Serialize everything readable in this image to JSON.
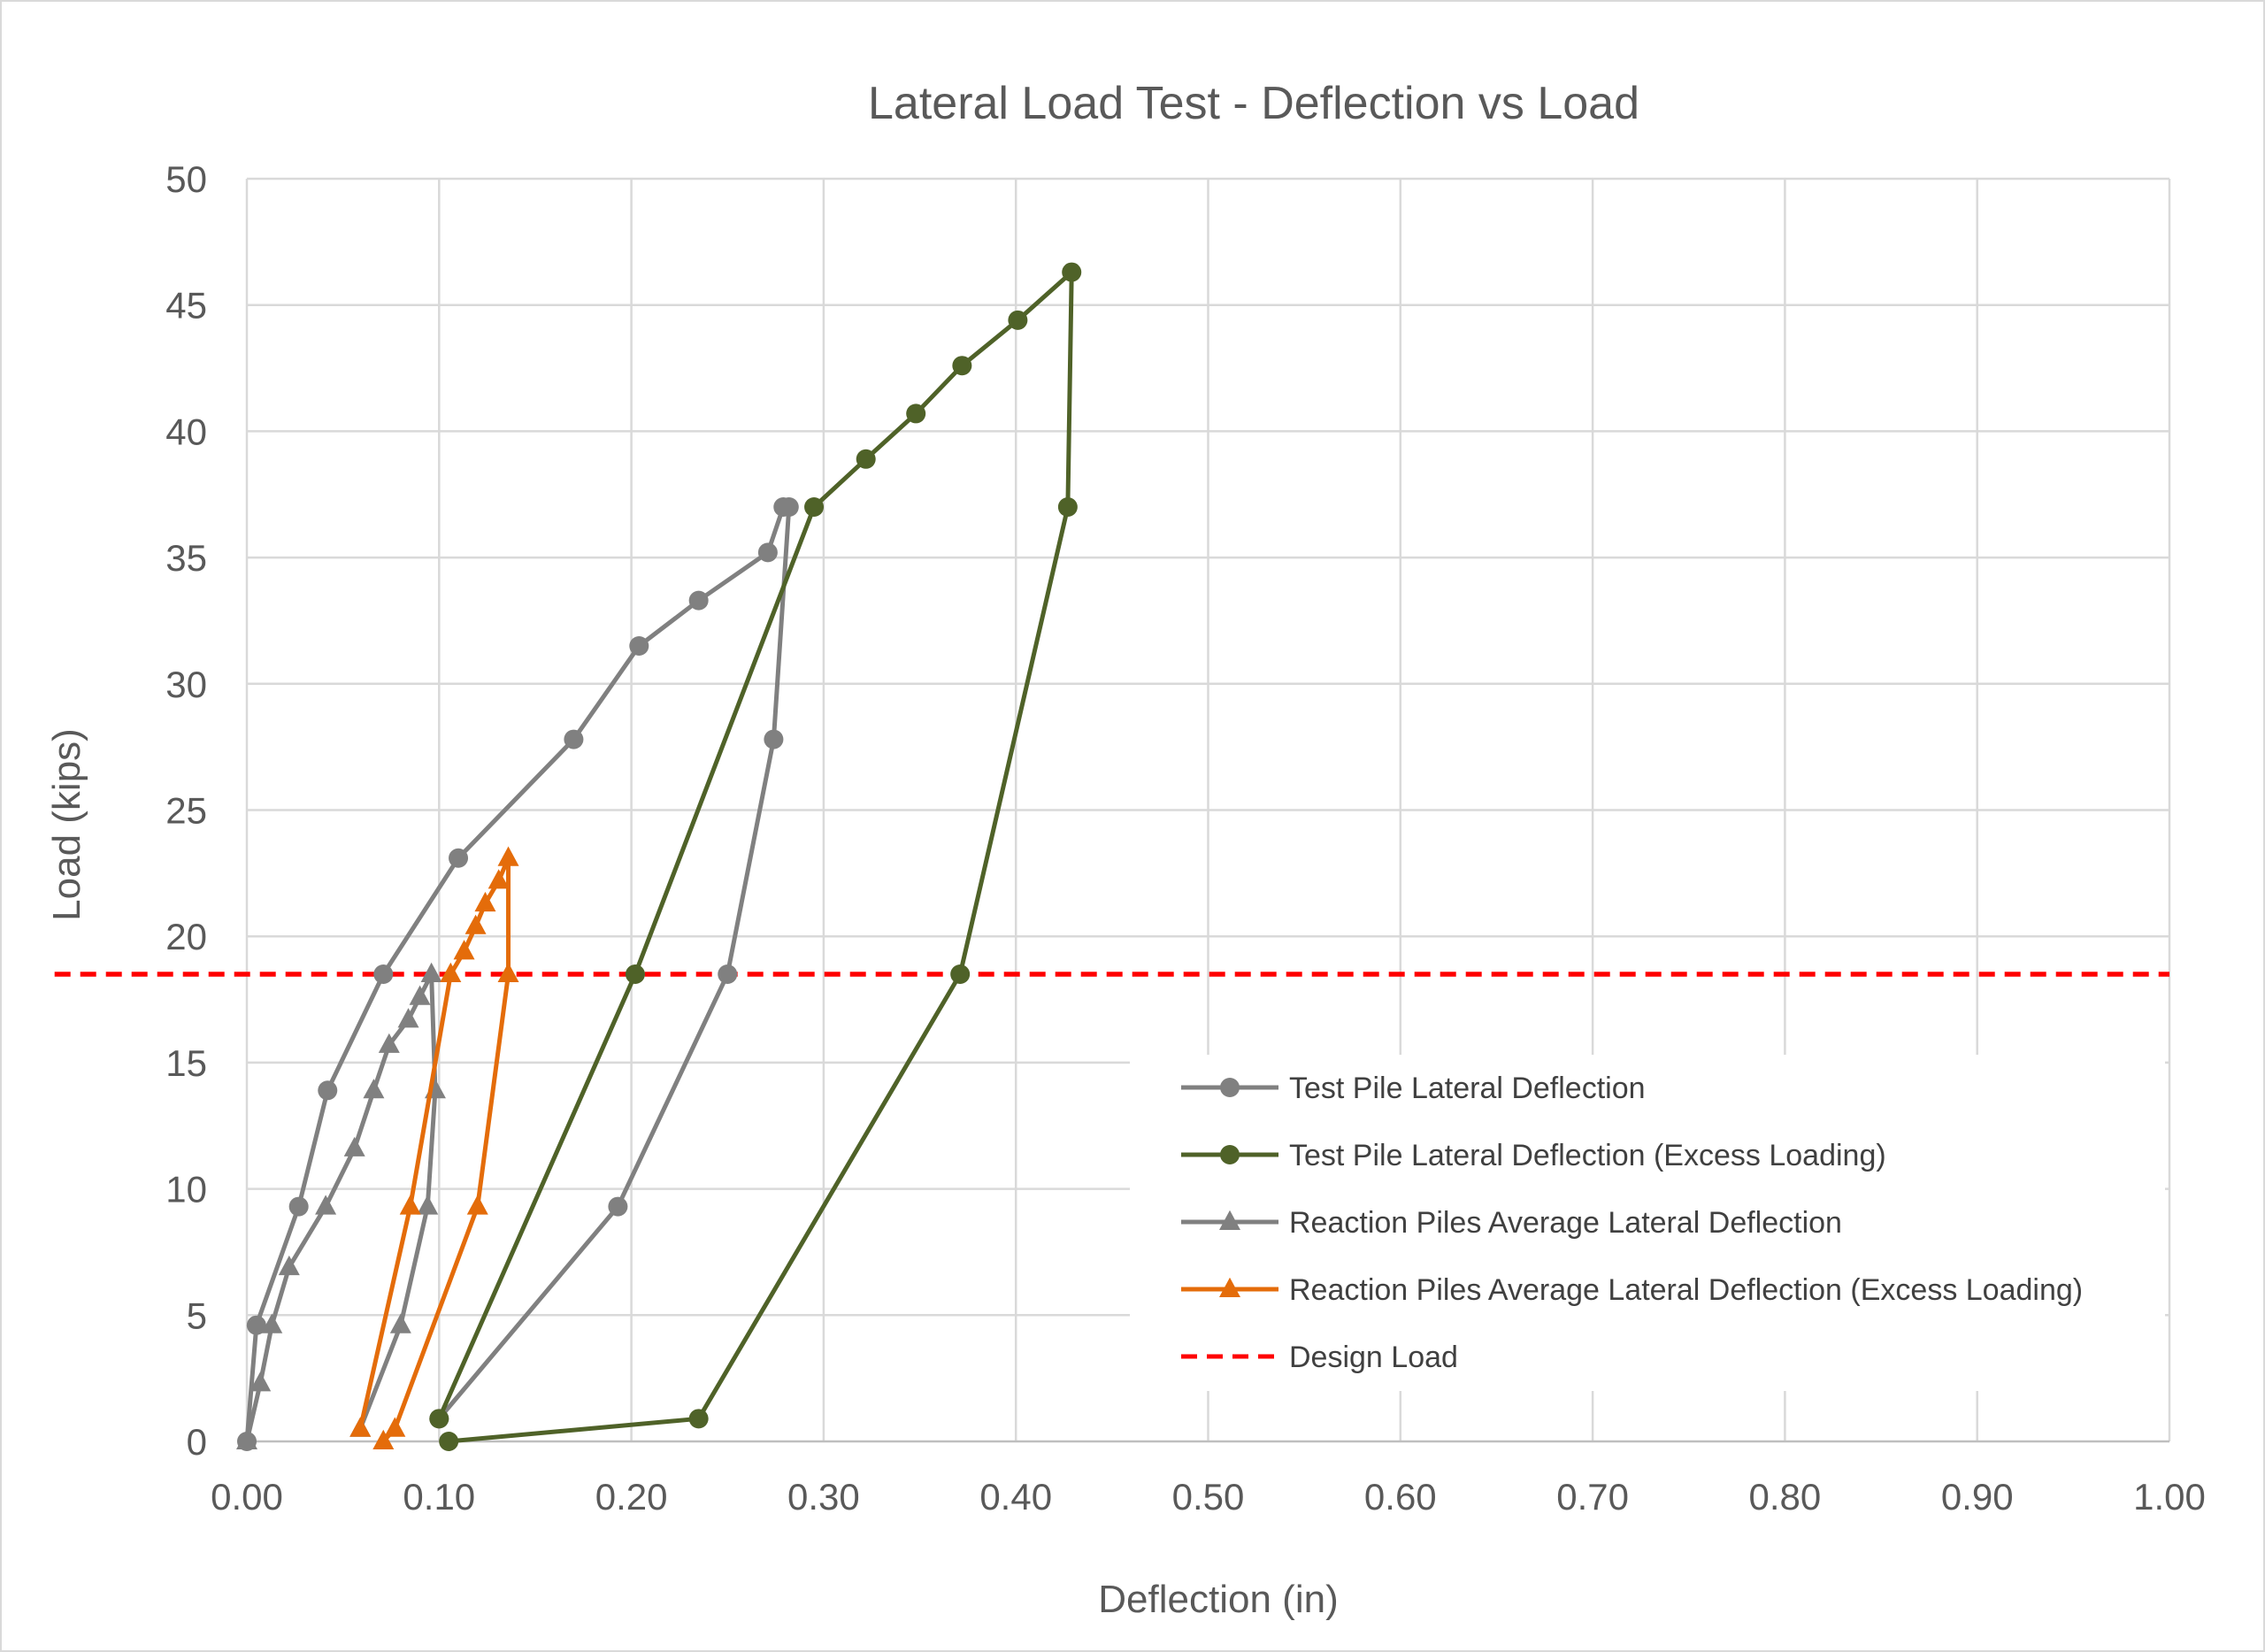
{
  "chart_data": {
    "type": "line",
    "title": "Lateral Load Test - Deflection vs Load",
    "xlabel": "Deflection (in)",
    "ylabel": "Load (kips)",
    "xlim": [
      0,
      1.0
    ],
    "ylim": [
      0,
      50
    ],
    "xticks": [
      "0.00",
      "0.10",
      "0.20",
      "0.30",
      "0.40",
      "0.50",
      "0.60",
      "0.70",
      "0.80",
      "0.90",
      "1.00"
    ],
    "yticks": [
      "0",
      "5",
      "10",
      "15",
      "20",
      "25",
      "30",
      "35",
      "40",
      "45",
      "50"
    ],
    "grid": true,
    "legend_position": "lower-right",
    "series": [
      {
        "name": "Test Pile Lateral Deflection",
        "color": "#808080",
        "marker": "circle",
        "points": [
          [
            0.0,
            0.0
          ],
          [
            0.005,
            4.6
          ],
          [
            0.027,
            9.3
          ],
          [
            0.042,
            13.9
          ],
          [
            0.071,
            18.5
          ],
          [
            0.11,
            23.1
          ],
          [
            0.17,
            27.8
          ],
          [
            0.204,
            31.5
          ],
          [
            0.235,
            33.3
          ],
          [
            0.271,
            35.2
          ],
          [
            0.279,
            37.0
          ],
          [
            0.282,
            37.0
          ],
          [
            0.274,
            27.8
          ],
          [
            0.25,
            18.5
          ],
          [
            0.193,
            9.3
          ],
          [
            0.1,
            0.9
          ]
        ]
      },
      {
        "name": "Test Pile Lateral Deflection (Excess Loading)",
        "color": "#4F6228",
        "marker": "circle",
        "points": [
          [
            0.1,
            0.9
          ],
          [
            0.202,
            18.5
          ],
          [
            0.295,
            37.0
          ],
          [
            0.322,
            38.9
          ],
          [
            0.348,
            40.7
          ],
          [
            0.372,
            42.6
          ],
          [
            0.401,
            44.4
          ],
          [
            0.429,
            46.3
          ],
          [
            0.427,
            37.0
          ],
          [
            0.371,
            18.5
          ],
          [
            0.235,
            0.9
          ],
          [
            0.105,
            0.0
          ]
        ]
      },
      {
        "name": "Reaction Piles Average Lateral Deflection",
        "color": "#808080",
        "marker": "triangle",
        "points": [
          [
            0.0,
            0.0
          ],
          [
            0.007,
            2.3
          ],
          [
            0.013,
            4.6
          ],
          [
            0.022,
            6.9
          ],
          [
            0.041,
            9.3
          ],
          [
            0.056,
            11.6
          ],
          [
            0.066,
            13.9
          ],
          [
            0.074,
            15.7
          ],
          [
            0.084,
            16.7
          ],
          [
            0.09,
            17.6
          ],
          [
            0.096,
            18.5
          ],
          [
            0.098,
            13.9
          ],
          [
            0.094,
            9.3
          ],
          [
            0.08,
            4.6
          ],
          [
            0.059,
            0.5
          ]
        ]
      },
      {
        "name": "Reaction Piles Average Lateral Deflection (Excess Loading)",
        "color": "#E46C0A",
        "marker": "triangle",
        "points": [
          [
            0.059,
            0.5
          ],
          [
            0.085,
            9.3
          ],
          [
            0.106,
            18.5
          ],
          [
            0.113,
            19.4
          ],
          [
            0.119,
            20.4
          ],
          [
            0.124,
            21.3
          ],
          [
            0.131,
            22.2
          ],
          [
            0.136,
            23.1
          ],
          [
            0.136,
            18.5
          ],
          [
            0.12,
            9.3
          ],
          [
            0.077,
            0.5
          ],
          [
            0.071,
            0.0
          ]
        ]
      },
      {
        "name": "Design Load",
        "color": "#FF0000",
        "marker": "none",
        "dashed": true,
        "points": [
          [
            -0.1,
            18.5
          ],
          [
            1.0,
            18.5
          ]
        ]
      }
    ]
  }
}
